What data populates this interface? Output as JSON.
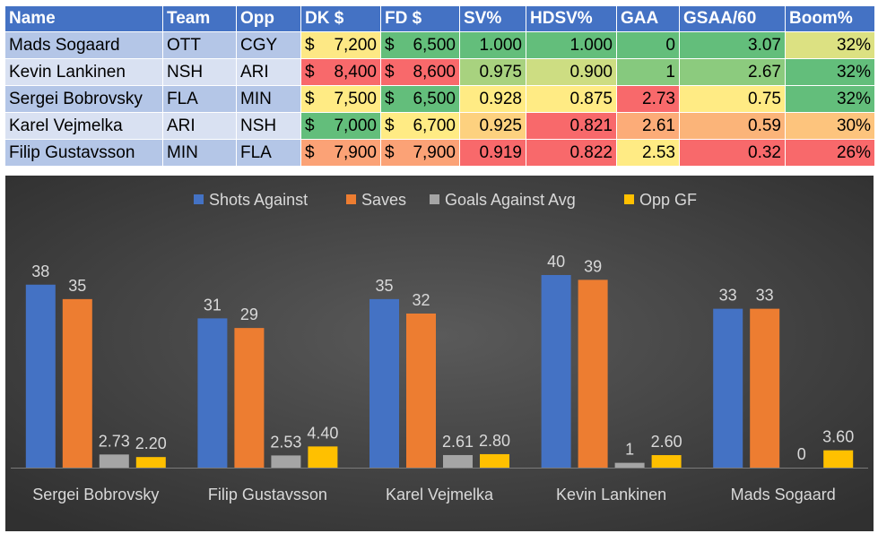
{
  "table": {
    "headers": [
      "Name",
      "Team",
      "Opp",
      "DK $",
      "FD $",
      "SV%",
      "HDSV%",
      "GAA",
      "GSAA/60",
      "Boom%"
    ],
    "rows": [
      {
        "name": "Mads Sogaard",
        "team": "OTT",
        "opp": "CGY",
        "dk": "7,200",
        "fd": "6,500",
        "sv": "1.000",
        "hdsv": "1.000",
        "gaa": "0",
        "gsaa": "3.07",
        "boom": "32%"
      },
      {
        "name": "Kevin Lankinen",
        "team": "NSH",
        "opp": "ARI",
        "dk": "8,400",
        "fd": "8,600",
        "sv": "0.975",
        "hdsv": "0.900",
        "gaa": "1",
        "gsaa": "2.67",
        "boom": "32%"
      },
      {
        "name": "Sergei Bobrovsky",
        "team": "FLA",
        "opp": "MIN",
        "dk": "7,500",
        "fd": "6,500",
        "sv": "0.928",
        "hdsv": "0.875",
        "gaa": "2.73",
        "gsaa": "0.75",
        "boom": "32%"
      },
      {
        "name": "Karel Vejmelka",
        "team": "ARI",
        "opp": "NSH",
        "dk": "7,000",
        "fd": "6,700",
        "sv": "0.925",
        "hdsv": "0.821",
        "gaa": "2.61",
        "gsaa": "0.59",
        "boom": "30%"
      },
      {
        "name": "Filip Gustavsson",
        "team": "MIN",
        "opp": "FLA",
        "dk": "7,900",
        "fd": "7,900",
        "sv": "0.919",
        "hdsv": "0.822",
        "gaa": "2.53",
        "gsaa": "0.32",
        "boom": "26%"
      }
    ],
    "currency_symbol": "$",
    "cell_colors": {
      "dk": [
        "#fde885",
        "#f8696b",
        "#ffeb84",
        "#63be7b",
        "#fba276"
      ],
      "fd": [
        "#63be7b",
        "#f8696b",
        "#63be7b",
        "#ffeb84",
        "#fba276"
      ],
      "sv": [
        "#63be7b",
        "#a8d27f",
        "#ffeb84",
        "#fdd17f",
        "#f8696b"
      ],
      "hdsv": [
        "#63be7b",
        "#cddd82",
        "#ffeb84",
        "#f8696b",
        "#f8696b"
      ],
      "gaa": [
        "#63be7b",
        "#86c97e",
        "#f8696b",
        "#fcac78",
        "#ffeb84"
      ],
      "gsaa": [
        "#63be7b",
        "#8ccb7e",
        "#ffeb84",
        "#fbb479",
        "#f8696b"
      ],
      "boom": [
        "#dce182",
        "#63be7b",
        "#63be7b",
        "#fdc47d",
        "#f8696b"
      ]
    }
  },
  "chart_data": {
    "type": "bar",
    "categories": [
      "Sergei Bobrovsky",
      "Filip Gustavsson",
      "Karel Vejmelka",
      "Kevin Lankinen",
      "Mads Sogaard"
    ],
    "series": [
      {
        "name": "Shots Against",
        "color": "#4472c4",
        "values": [
          38,
          31,
          35,
          40,
          33
        ],
        "labels": [
          "38",
          "31",
          "35",
          "40",
          "33"
        ]
      },
      {
        "name": "Saves",
        "color": "#ed7d31",
        "values": [
          35,
          29,
          32,
          39,
          33
        ],
        "labels": [
          "35",
          "29",
          "32",
          "39",
          "33"
        ]
      },
      {
        "name": "Goals Against Avg",
        "color": "#a5a5a5",
        "values": [
          2.73,
          2.53,
          2.61,
          1,
          0
        ],
        "labels": [
          "2.73",
          "2.53",
          "2.61",
          "1",
          "0"
        ]
      },
      {
        "name": "Opp GF",
        "color": "#ffc000",
        "values": [
          2.2,
          4.4,
          2.8,
          2.6,
          3.6
        ],
        "labels": [
          "2.20",
          "4.40",
          "2.80",
          "2.60",
          "3.60"
        ]
      }
    ],
    "legend_position": "top",
    "ylim": [
      0,
      40
    ]
  }
}
